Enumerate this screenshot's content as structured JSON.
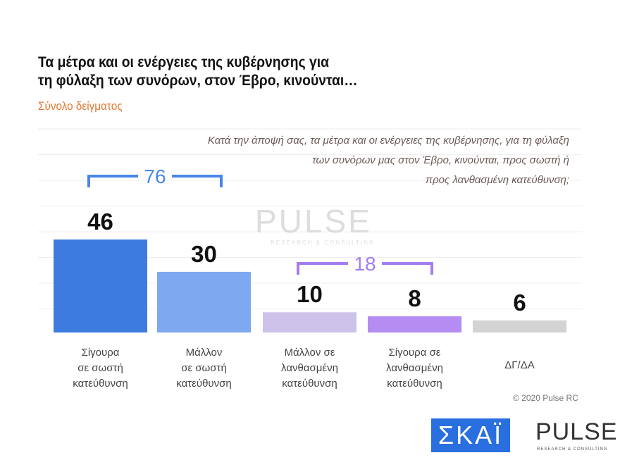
{
  "title_line1": "Τα μέτρα και οι ενέργειες της κυβέρνησης για",
  "title_line2": "τη φύλαξη των συνόρων, στον Έβρο, κινούνται…",
  "subtitle": "Σύνολο δείγματος",
  "question_lines": [
    "Κατά την άποψή σας, τα μέτρα και οι ενέργειες της κυβέρνησης, για τη φύλαξη",
    "των συνόρων μας στον Έβρο, κινούνται, προς σωστή ή",
    "προς λανθασμένη κατεύθυνση;"
  ],
  "copyright": "© 2020 Pulse RC",
  "logos": {
    "skai": "ΣΚΑΪ",
    "pulse": "PULSE",
    "pulse_sub": "RESEARCH & CONSULTING"
  },
  "chart_data": {
    "type": "bar",
    "categories": [
      [
        "Σίγουρα",
        "σε σωστή",
        "κατεύθυνση"
      ],
      [
        "Μάλλον",
        "σε σωστή",
        "κατεύθυνση"
      ],
      [
        "Μάλλον σε",
        "λανθασμένη",
        "κατεύθυνση"
      ],
      [
        "Σίγουρα σε",
        "λανθασμένη",
        "κατεύθυνση"
      ],
      [
        "ΔΓ/ΔΑ"
      ]
    ],
    "values": [
      46,
      30,
      10,
      8,
      6
    ],
    "colors": [
      "#3d7be0",
      "#7ea9f0",
      "#cdc3ea",
      "#b48cf2",
      "#d3d3d3"
    ],
    "groups": [
      {
        "label": "76",
        "from": 0,
        "to": 1,
        "color": "#4a86e8"
      },
      {
        "label": "18",
        "from": 2,
        "to": 3,
        "color": "#a47ef0"
      }
    ],
    "ylim": [
      0,
      50
    ],
    "grid": true
  }
}
